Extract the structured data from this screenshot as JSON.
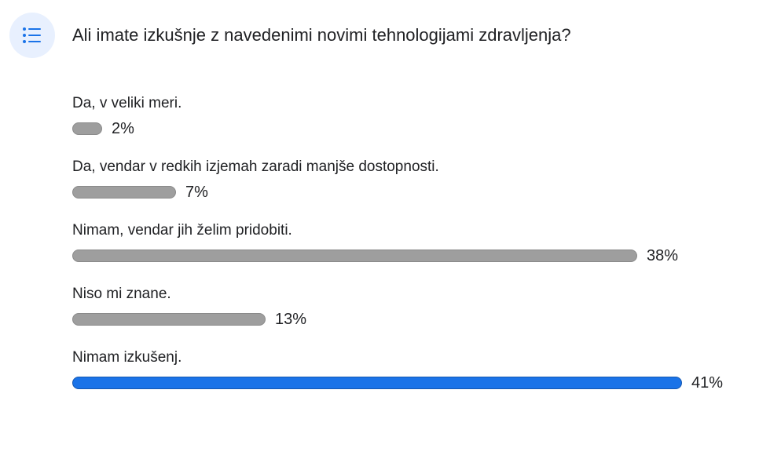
{
  "poll": {
    "question": "Ali imate izkušnje z navedenimi novimi tehnologijami zdravljenja?",
    "icon": "list-icon"
  },
  "colors": {
    "bar_default": "#9e9e9e",
    "bar_border": "#8a8a8a",
    "bar_leader": "#1a73e8",
    "bar_leader_border": "#1557b0",
    "icon_bg": "#e8f0fe",
    "icon_fg": "#1a73e8"
  },
  "chart_data": {
    "type": "bar",
    "orientation": "horizontal",
    "categories": [
      "Da, v veliki meri.",
      "Da, vendar v redkih izjemah zaradi manjše dostopnosti.",
      "Nimam, vendar jih želim pridobiti.",
      "Niso mi znane.",
      "Nimam izkušenj."
    ],
    "values": [
      2,
      7,
      38,
      13,
      41
    ],
    "labels": [
      "2%",
      "7%",
      "38%",
      "13%",
      "41%"
    ],
    "unit": "%",
    "highlighted_index": 4
  }
}
